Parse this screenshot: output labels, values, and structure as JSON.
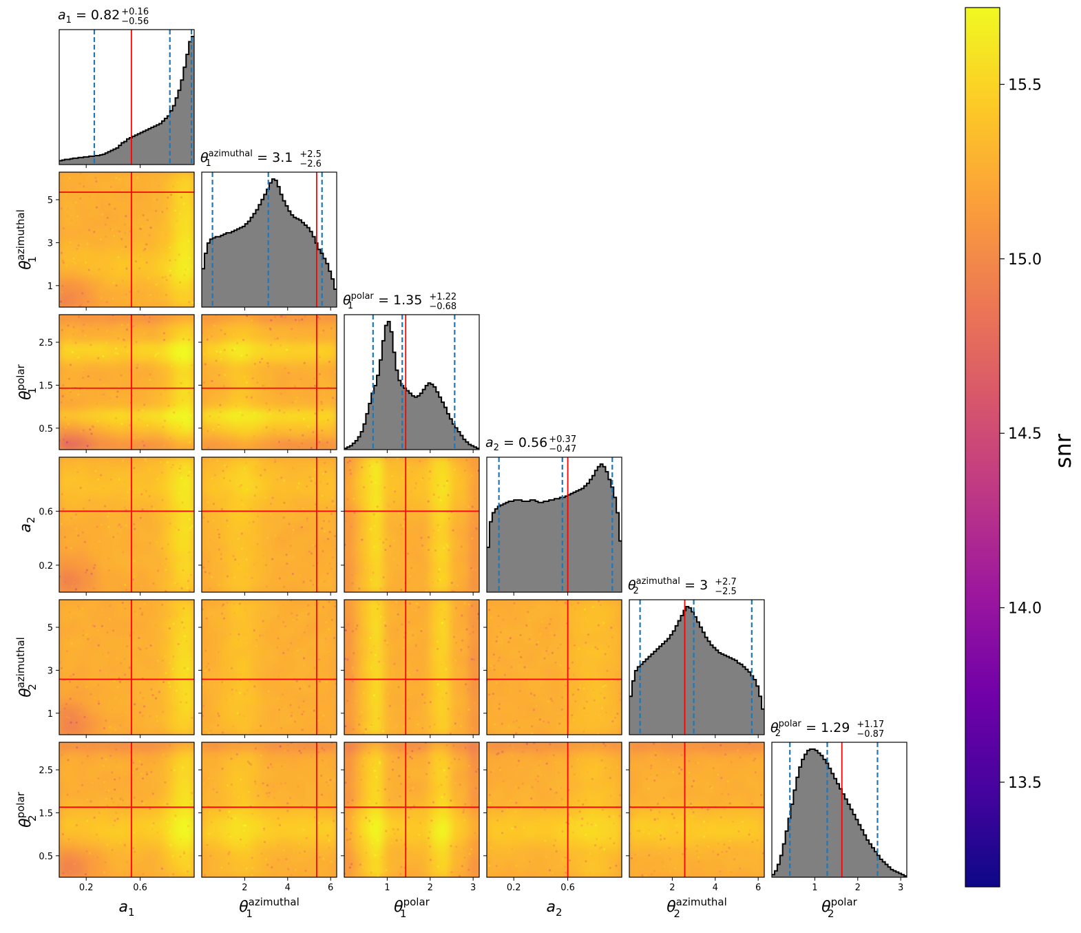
{
  "chart_data": {
    "type": "corner",
    "parameters": [
      {
        "key": "a1",
        "symbol": "a",
        "sub": "1",
        "sup": "",
        "range": [
          0.0,
          1.0
        ],
        "ticks": [
          0.2,
          0.6
        ],
        "tick_labels": [
          "0.2",
          "0.6"
        ],
        "median": 0.82,
        "plus": 0.16,
        "minus": 0.56,
        "title_value": "0.82",
        "title_plus": "+0.16",
        "title_minus": "−0.56",
        "truth": 0.535,
        "quantiles": [
          0.26,
          0.82,
          0.98
        ]
      },
      {
        "key": "t1az",
        "symbol": "θ",
        "sub": "1",
        "sup": "azimuthal",
        "range": [
          0.0,
          6.283
        ],
        "ticks": [
          2,
          4,
          6
        ],
        "tick_labels": [
          "2",
          "4",
          "6"
        ],
        "left_ticks": [
          1,
          3,
          5
        ],
        "left_tick_labels": [
          "1",
          "3",
          "5"
        ],
        "median": 3.1,
        "plus": 2.5,
        "minus": 2.6,
        "title_value": "3.1",
        "title_plus": "+2.5",
        "title_minus": "−2.6",
        "truth": 5.35,
        "quantiles": [
          0.5,
          3.1,
          5.6
        ]
      },
      {
        "key": "t1pol",
        "symbol": "θ",
        "sub": "1",
        "sup": "polar",
        "range": [
          0.0,
          3.1416
        ],
        "ticks": [
          1,
          2,
          3
        ],
        "tick_labels": [
          "1",
          "2",
          "3"
        ],
        "left_ticks": [
          0.5,
          1.5,
          2.5
        ],
        "left_tick_labels": [
          "0.5",
          "1.5",
          "2.5"
        ],
        "median": 1.35,
        "plus": 1.22,
        "minus": 0.68,
        "title_value": "1.35",
        "title_plus": "+1.22",
        "title_minus": "−0.68",
        "truth": 1.43,
        "quantiles": [
          0.67,
          1.35,
          2.57
        ]
      },
      {
        "key": "a2",
        "symbol": "a",
        "sub": "2",
        "sup": "",
        "range": [
          0.0,
          1.0
        ],
        "ticks": [
          0.2,
          0.6
        ],
        "tick_labels": [
          "0.2",
          "0.6"
        ],
        "left_ticks": [
          0.2,
          0.6
        ],
        "left_tick_labels": [
          "0.2",
          "0.6"
        ],
        "median": 0.56,
        "plus": 0.37,
        "minus": 0.47,
        "title_value": "0.56",
        "title_plus": "+0.37",
        "title_minus": "−0.47",
        "truth": 0.6,
        "quantiles": [
          0.09,
          0.56,
          0.93
        ]
      },
      {
        "key": "t2az",
        "symbol": "θ",
        "sub": "2",
        "sup": "azimuthal",
        "range": [
          0.0,
          6.283
        ],
        "ticks": [
          2,
          4,
          6
        ],
        "tick_labels": [
          "2",
          "4",
          "6"
        ],
        "left_ticks": [
          1,
          3,
          5
        ],
        "left_tick_labels": [
          "1",
          "3",
          "5"
        ],
        "median": 3.0,
        "plus": 2.7,
        "minus": 2.5,
        "title_value": "3",
        "title_plus": "+2.7",
        "title_minus": "−2.5",
        "truth": 2.58,
        "quantiles": [
          0.5,
          3.0,
          5.7
        ]
      },
      {
        "key": "t2pol",
        "symbol": "θ",
        "sub": "2",
        "sup": "polar",
        "range": [
          0.0,
          3.1416
        ],
        "ticks": [
          1,
          2,
          3
        ],
        "tick_labels": [
          "1",
          "2",
          "3"
        ],
        "left_ticks": [
          0.5,
          1.5,
          2.5
        ],
        "left_tick_labels": [
          "0.5",
          "1.5",
          "2.5"
        ],
        "median": 1.29,
        "plus": 1.17,
        "minus": 0.87,
        "title_value": "1.29",
        "title_plus": "+1.17",
        "title_minus": "−0.87",
        "truth": 1.63,
        "quantiles": [
          0.42,
          1.29,
          2.46
        ]
      }
    ],
    "histograms": {
      "a1": [
        0.03,
        0.035,
        0.04,
        0.04,
        0.045,
        0.05,
        0.05,
        0.055,
        0.055,
        0.06,
        0.06,
        0.065,
        0.065,
        0.07,
        0.07,
        0.075,
        0.08,
        0.09,
        0.1,
        0.11,
        0.12,
        0.13,
        0.15,
        0.17,
        0.18,
        0.2,
        0.21,
        0.22,
        0.23,
        0.24,
        0.25,
        0.26,
        0.27,
        0.28,
        0.29,
        0.3,
        0.31,
        0.32,
        0.34,
        0.36,
        0.38,
        0.42,
        0.46,
        0.52,
        0.58,
        0.66,
        0.76,
        0.86,
        0.96,
        1.0
      ],
      "t1az": [
        0.3,
        0.42,
        0.5,
        0.53,
        0.54,
        0.55,
        0.55,
        0.56,
        0.57,
        0.58,
        0.58,
        0.59,
        0.6,
        0.61,
        0.62,
        0.63,
        0.65,
        0.67,
        0.7,
        0.73,
        0.76,
        0.8,
        0.84,
        0.88,
        0.92,
        0.97,
        1.0,
        0.99,
        0.94,
        0.88,
        0.83,
        0.79,
        0.75,
        0.72,
        0.7,
        0.69,
        0.68,
        0.66,
        0.64,
        0.62,
        0.59,
        0.55,
        0.5,
        0.45,
        0.42,
        0.38,
        0.34,
        0.28,
        0.22,
        0.14
      ],
      "t1pol": [
        0.01,
        0.02,
        0.03,
        0.05,
        0.07,
        0.1,
        0.14,
        0.2,
        0.28,
        0.36,
        0.44,
        0.5,
        0.58,
        0.7,
        0.85,
        0.97,
        1.0,
        0.92,
        0.76,
        0.62,
        0.54,
        0.5,
        0.48,
        0.46,
        0.44,
        0.42,
        0.41,
        0.42,
        0.44,
        0.47,
        0.5,
        0.52,
        0.51,
        0.49,
        0.45,
        0.41,
        0.37,
        0.33,
        0.28,
        0.24,
        0.2,
        0.17,
        0.14,
        0.11,
        0.08,
        0.06,
        0.04,
        0.03,
        0.02,
        0.01
      ],
      "a2": [
        0.35,
        0.55,
        0.62,
        0.65,
        0.67,
        0.68,
        0.69,
        0.7,
        0.71,
        0.71,
        0.72,
        0.72,
        0.72,
        0.71,
        0.71,
        0.71,
        0.72,
        0.72,
        0.71,
        0.7,
        0.7,
        0.71,
        0.71,
        0.72,
        0.72,
        0.73,
        0.73,
        0.74,
        0.74,
        0.75,
        0.76,
        0.77,
        0.78,
        0.79,
        0.8,
        0.81,
        0.83,
        0.85,
        0.88,
        0.91,
        0.95,
        0.98,
        1.0,
        0.98,
        0.94,
        0.88,
        0.82,
        0.74,
        0.62,
        0.4
      ],
      "t2az": [
        0.3,
        0.42,
        0.5,
        0.53,
        0.55,
        0.57,
        0.59,
        0.61,
        0.63,
        0.65,
        0.67,
        0.69,
        0.71,
        0.73,
        0.75,
        0.78,
        0.81,
        0.85,
        0.89,
        0.93,
        0.97,
        1.0,
        0.99,
        0.96,
        0.92,
        0.88,
        0.84,
        0.8,
        0.76,
        0.73,
        0.7,
        0.68,
        0.66,
        0.64,
        0.63,
        0.62,
        0.61,
        0.6,
        0.59,
        0.58,
        0.56,
        0.55,
        0.53,
        0.51,
        0.49,
        0.46,
        0.43,
        0.38,
        0.3,
        0.2
      ],
      "t2pol": [
        0.02,
        0.05,
        0.1,
        0.17,
        0.26,
        0.36,
        0.46,
        0.57,
        0.68,
        0.78,
        0.86,
        0.92,
        0.96,
        0.99,
        1.0,
        1.0,
        0.99,
        0.97,
        0.95,
        0.92,
        0.89,
        0.85,
        0.81,
        0.77,
        0.73,
        0.69,
        0.65,
        0.61,
        0.57,
        0.53,
        0.49,
        0.45,
        0.41,
        0.37,
        0.33,
        0.29,
        0.26,
        0.23,
        0.2,
        0.17,
        0.14,
        0.12,
        0.1,
        0.08,
        0.06,
        0.05,
        0.04,
        0.03,
        0.02,
        0.01
      ]
    },
    "colorbar": {
      "label": "snr",
      "min": 13.2,
      "max": 15.72,
      "ticks": [
        13.5,
        14.0,
        14.5,
        15.0,
        15.5
      ],
      "tick_labels": [
        "13.5",
        "14.0",
        "14.5",
        "15.0",
        "15.5"
      ],
      "colormap": "plasma",
      "colormap_stops": [
        "#0d0887",
        "#46039f",
        "#7201a8",
        "#9c179e",
        "#bd3786",
        "#d8576b",
        "#ed7953",
        "#fb9f3a",
        "#fdca26",
        "#f0f921"
      ]
    },
    "colors": {
      "truth_line": "#ff0000",
      "quantile_line": "#1f77b4",
      "hist_fill": "#808080",
      "hist_edge": "#000000"
    }
  }
}
